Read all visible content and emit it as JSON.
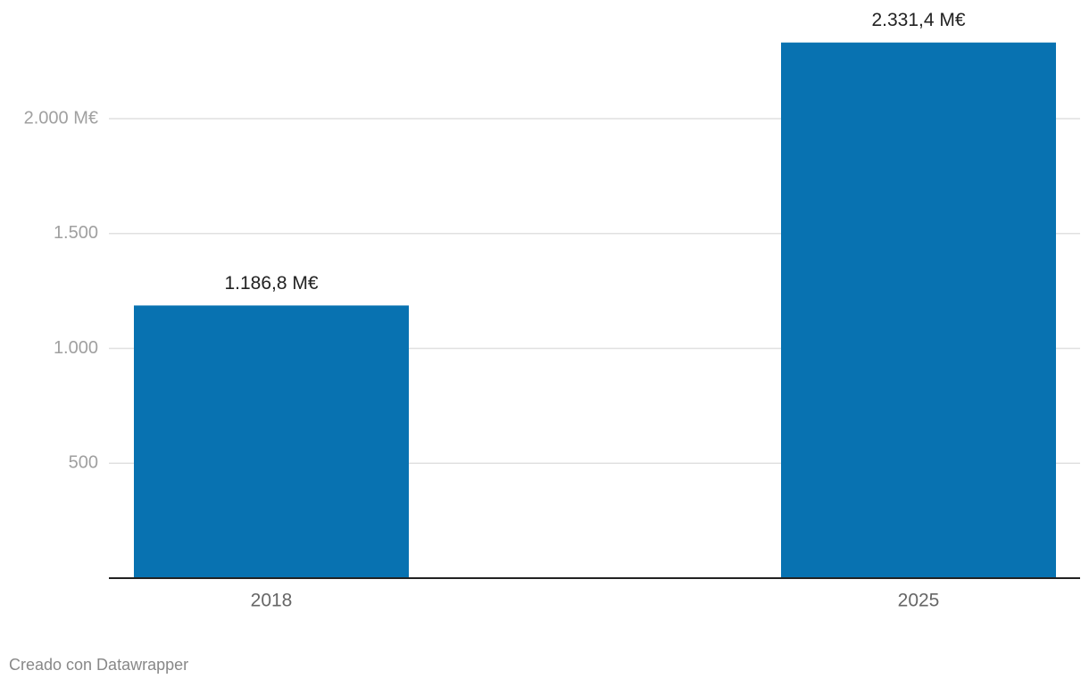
{
  "chart_data": {
    "type": "bar",
    "categories": [
      "2018",
      "2025"
    ],
    "values": [
      1186.8,
      2331.4
    ],
    "value_labels": [
      "1.186,8 M€",
      "2.331,4 M€"
    ],
    "color": "#0872b1",
    "ylim": [
      0,
      2400
    ],
    "yticks": [
      500,
      {
        "value": 1000,
        "label": "1.000"
      },
      {
        "value": 1500,
        "label": "1.500"
      },
      {
        "value": 2000,
        "label": "2.000 M€"
      }
    ],
    "grid": true,
    "credit": "Creado con Datawrapper"
  }
}
